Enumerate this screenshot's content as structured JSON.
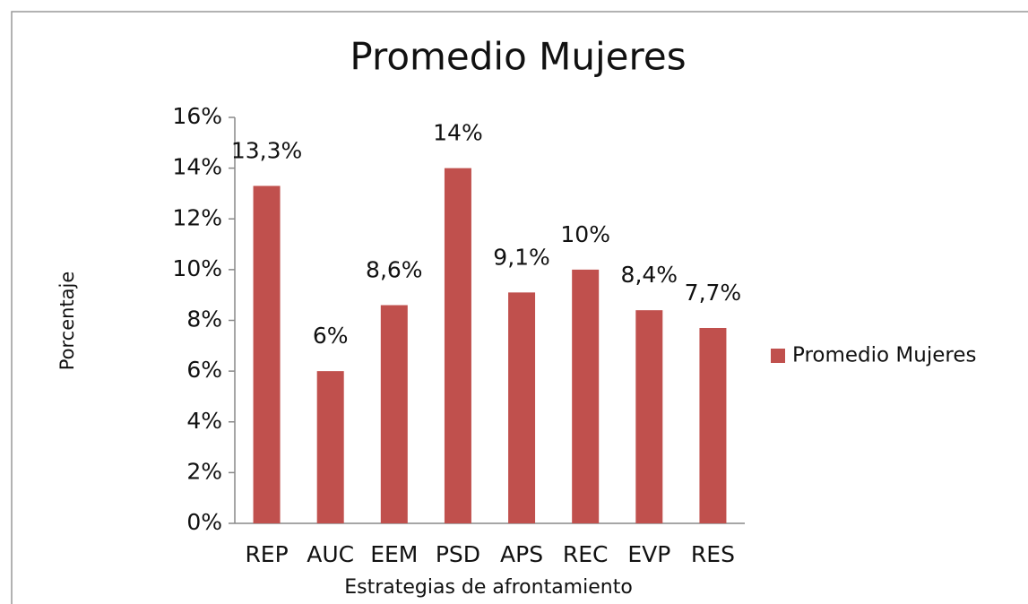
{
  "chart_data": {
    "type": "bar",
    "title": "Promedio Mujeres",
    "x_label": "Estrategias de afrontamiento",
    "y_label": "Porcentaje",
    "categories": [
      "REP",
      "AUC",
      "EEM",
      "PSD",
      "APS",
      "REC",
      "EVP",
      "RES"
    ],
    "series": [
      {
        "name": "Promedio Mujeres",
        "color": "#c0504d",
        "values": [
          13.3,
          6,
          8.6,
          14,
          9.1,
          10,
          8.4,
          7.7
        ],
        "value_labels": [
          "13,3%",
          "6%",
          "8,6%",
          "14%",
          "9,1%",
          "10%",
          "8,4%",
          "7,7%"
        ]
      }
    ],
    "ylim": [
      0,
      16
    ],
    "yticks": [
      {
        "value": 0,
        "label": "0%"
      },
      {
        "value": 2,
        "label": "2%"
      },
      {
        "value": 4,
        "label": "4%"
      },
      {
        "value": 6,
        "label": "6%"
      },
      {
        "value": 8,
        "label": "8%"
      },
      {
        "value": 10,
        "label": "10%"
      },
      {
        "value": 12,
        "label": "12%"
      },
      {
        "value": 14,
        "label": "14%"
      },
      {
        "value": 16,
        "label": "16%"
      }
    ],
    "grid": false,
    "legend": "right"
  }
}
